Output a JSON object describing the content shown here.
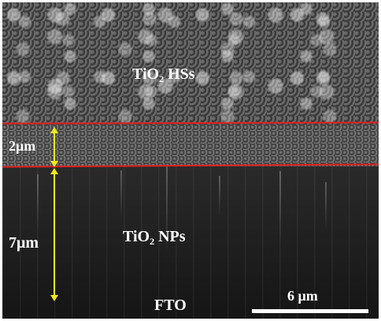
{
  "image": {
    "layers": [
      {
        "name": "TiO2 HSs",
        "main": "TiO",
        "subscript": "2",
        "suffix": " HSs"
      },
      {
        "name": "TiO2 NPs",
        "main": "TiO",
        "subscript": "2",
        "suffix": " NPs"
      },
      {
        "name": "FTO",
        "text": "FTO"
      }
    ],
    "thickness_labels": {
      "top": "2μm",
      "bottom": "7μm"
    },
    "scale_bar": {
      "label": "6 μm"
    },
    "colors": {
      "boundary_line": "#e0201e",
      "arrow": "#f2e81a",
      "text": "#ffffff",
      "background": "#1a1a1a"
    }
  }
}
